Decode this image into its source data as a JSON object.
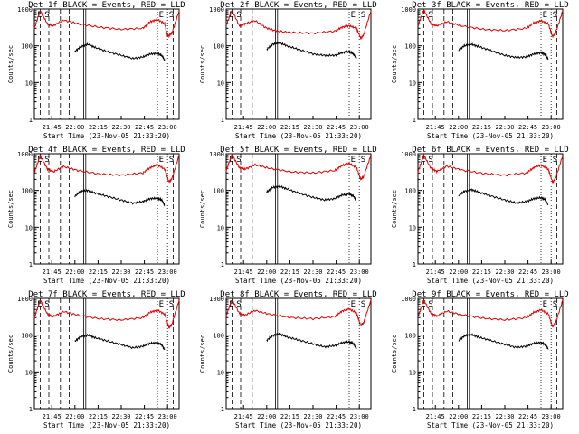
{
  "chart_data": [
    {
      "type": "line",
      "title": "Det 1f BLACK = Events, RED = LLD",
      "xlabel": "Start Time (23-Nov-05 21:33:20)",
      "ylabel": "Counts/sec",
      "yscale": "log",
      "ylim": [
        1,
        1000
      ],
      "y_ticks": [
        "1",
        "10",
        "100",
        "1000"
      ],
      "x_ticks": [
        "21:45",
        "22:00",
        "22:15",
        "22:30",
        "22:45",
        "23:00"
      ],
      "markers": [
        "E",
        "S",
        "E",
        "S"
      ],
      "series": [
        {
          "name": "RED",
          "color": "#e00000",
          "x": [
            0,
            4,
            9,
            13,
            20,
            30,
            45,
            60,
            75,
            80,
            85,
            90,
            92,
            95,
            100
          ],
          "y": [
            300,
            900,
            400,
            350,
            500,
            400,
            320,
            280,
            300,
            450,
            520,
            400,
            180,
            220,
            900
          ]
        },
        {
          "name": "BLACK",
          "color": "#000000",
          "x": [
            28,
            32,
            37,
            42,
            50,
            60,
            68,
            75,
            80,
            85,
            88,
            90
          ],
          "y": [
            70,
            95,
            110,
            90,
            70,
            55,
            45,
            50,
            60,
            62,
            55,
            40
          ]
        }
      ]
    },
    {
      "type": "line",
      "title": "Det 2f BLACK = Events, RED = LLD",
      "xlabel": "Start Time (23-Nov-05 21:33:20)",
      "ylabel": "Counts/sec",
      "yscale": "log",
      "ylim": [
        1,
        1000
      ],
      "y_ticks": [
        "1",
        "10",
        "100",
        "1000"
      ],
      "x_ticks": [
        "21:45",
        "22:00",
        "22:15",
        "22:30",
        "22:45",
        "23:00"
      ],
      "markers": [
        "E",
        "S",
        "E",
        "S"
      ],
      "series": [
        {
          "name": "RED",
          "color": "#e00000",
          "x": [
            0,
            4,
            9,
            13,
            20,
            28,
            35,
            45,
            60,
            75,
            80,
            85,
            90,
            93,
            95,
            100
          ],
          "y": [
            350,
            950,
            350,
            400,
            480,
            300,
            250,
            230,
            220,
            250,
            320,
            350,
            300,
            160,
            200,
            900
          ]
        },
        {
          "name": "BLACK",
          "color": "#000000",
          "x": [
            28,
            32,
            37,
            42,
            50,
            60,
            68,
            75,
            80,
            85,
            88,
            90
          ],
          "y": [
            80,
            110,
            120,
            100,
            80,
            60,
            55,
            55,
            65,
            70,
            60,
            45
          ]
        }
      ]
    },
    {
      "type": "line",
      "title": "Det 3f BLACK = Events, RED = LLD",
      "xlabel": "Start Time (23-Nov-05 21:33:20)",
      "ylabel": "Counts/sec",
      "yscale": "log",
      "ylim": [
        1,
        1000
      ],
      "y_ticks": [
        "1",
        "10",
        "100",
        "1000"
      ],
      "x_ticks": [
        "21:45",
        "22:00",
        "22:15",
        "22:30",
        "22:45",
        "23:00"
      ],
      "markers": [
        "E",
        "S",
        "E",
        "S"
      ],
      "series": [
        {
          "name": "RED",
          "color": "#e00000",
          "x": [
            0,
            4,
            9,
            13,
            20,
            30,
            45,
            60,
            75,
            80,
            85,
            90,
            93,
            95,
            100
          ],
          "y": [
            350,
            950,
            400,
            350,
            450,
            350,
            280,
            260,
            300,
            420,
            480,
            400,
            180,
            220,
            900
          ]
        },
        {
          "name": "BLACK",
          "color": "#000000",
          "x": [
            28,
            32,
            37,
            42,
            50,
            60,
            68,
            75,
            80,
            85,
            88,
            90
          ],
          "y": [
            75,
            100,
            110,
            95,
            75,
            55,
            48,
            50,
            60,
            65,
            58,
            42
          ]
        }
      ]
    },
    {
      "type": "line",
      "title": "Det 4f BLACK = Events, RED = LLD",
      "xlabel": "Start Time (23-Nov-05 21:33:20)",
      "ylabel": "Counts/sec",
      "yscale": "log",
      "ylim": [
        1,
        1000
      ],
      "y_ticks": [
        "1",
        "10",
        "100",
        "1000"
      ],
      "x_ticks": [
        "21:45",
        "22:00",
        "22:15",
        "22:30",
        "22:45",
        "23:00"
      ],
      "markers": [
        "E",
        "S",
        "E",
        "S"
      ],
      "series": [
        {
          "name": "RED",
          "color": "#e00000",
          "x": [
            0,
            4,
            9,
            13,
            20,
            30,
            45,
            60,
            75,
            80,
            85,
            90,
            93,
            95,
            100
          ],
          "y": [
            300,
            900,
            380,
            320,
            450,
            350,
            280,
            260,
            300,
            420,
            500,
            380,
            170,
            210,
            900
          ]
        },
        {
          "name": "BLACK",
          "color": "#000000",
          "x": [
            28,
            32,
            37,
            42,
            50,
            60,
            68,
            75,
            80,
            85,
            88,
            90
          ],
          "y": [
            70,
            95,
            100,
            85,
            70,
            55,
            45,
            50,
            60,
            62,
            55,
            40
          ]
        }
      ]
    },
    {
      "type": "line",
      "title": "Det 5f BLACK = Events, RED = LLD",
      "xlabel": "Start Time (23-Nov-05 21:33:20)",
      "ylabel": "Counts/sec",
      "yscale": "log",
      "ylim": [
        1,
        1000
      ],
      "y_ticks": [
        "1",
        "10",
        "100",
        "1000"
      ],
      "x_ticks": [
        "21:45",
        "22:00",
        "22:15",
        "22:30",
        "22:45",
        "23:00"
      ],
      "markers": [
        "E",
        "S",
        "E",
        "S"
      ],
      "series": [
        {
          "name": "RED",
          "color": "#e00000",
          "x": [
            0,
            4,
            9,
            13,
            20,
            30,
            45,
            60,
            75,
            80,
            85,
            90,
            93,
            95,
            100
          ],
          "y": [
            350,
            950,
            420,
            380,
            500,
            400,
            320,
            300,
            350,
            480,
            550,
            420,
            200,
            240,
            900
          ]
        },
        {
          "name": "BLACK",
          "color": "#000000",
          "x": [
            28,
            32,
            37,
            42,
            50,
            60,
            68,
            75,
            80,
            85,
            88,
            90
          ],
          "y": [
            90,
            120,
            130,
            110,
            85,
            65,
            55,
            60,
            75,
            80,
            70,
            50
          ]
        }
      ]
    },
    {
      "type": "line",
      "title": "Det 6f BLACK = Events, RED = LLD",
      "xlabel": "Start Time (23-Nov-05 21:33:20)",
      "ylabel": "Counts/sec",
      "yscale": "log",
      "ylim": [
        1,
        1000
      ],
      "y_ticks": [
        "1",
        "10",
        "100",
        "1000"
      ],
      "x_ticks": [
        "21:45",
        "22:00",
        "22:15",
        "22:30",
        "22:45",
        "23:00"
      ],
      "markers": [
        "E",
        "S",
        "E",
        "S"
      ],
      "series": [
        {
          "name": "RED",
          "color": "#e00000",
          "x": [
            0,
            4,
            9,
            13,
            20,
            30,
            45,
            60,
            75,
            80,
            85,
            90,
            93,
            95,
            100
          ],
          "y": [
            320,
            920,
            400,
            330,
            460,
            360,
            290,
            260,
            300,
            420,
            490,
            380,
            170,
            210,
            900
          ]
        },
        {
          "name": "BLACK",
          "color": "#000000",
          "x": [
            28,
            32,
            37,
            42,
            50,
            60,
            68,
            75,
            80,
            85,
            88,
            90
          ],
          "y": [
            70,
            95,
            105,
            90,
            72,
            55,
            46,
            50,
            60,
            64,
            56,
            40
          ]
        }
      ]
    },
    {
      "type": "line",
      "title": "Det 7f BLACK = Events, RED = LLD",
      "xlabel": "Start Time (23-Nov-05 21:33:20)",
      "ylabel": "Counts/sec",
      "yscale": "log",
      "ylim": [
        1,
        1000
      ],
      "y_ticks": [
        "1",
        "10",
        "100",
        "1000"
      ],
      "x_ticks": [
        "21:45",
        "22:00",
        "22:15",
        "22:30",
        "22:45",
        "23:00"
      ],
      "markers": [
        "E",
        "S",
        "E",
        "S"
      ],
      "series": [
        {
          "name": "RED",
          "color": "#e00000",
          "x": [
            0,
            4,
            9,
            13,
            20,
            30,
            45,
            60,
            75,
            80,
            85,
            90,
            93,
            95,
            100
          ],
          "y": [
            300,
            900,
            380,
            320,
            440,
            350,
            280,
            260,
            300,
            420,
            480,
            370,
            160,
            200,
            900
          ]
        },
        {
          "name": "BLACK",
          "color": "#000000",
          "x": [
            28,
            32,
            37,
            42,
            50,
            60,
            68,
            75,
            80,
            85,
            88,
            90
          ],
          "y": [
            68,
            92,
            100,
            85,
            70,
            55,
            45,
            50,
            60,
            62,
            55,
            40
          ]
        }
      ]
    },
    {
      "type": "line",
      "title": "Det 8f BLACK = Events, RED = LLD",
      "xlabel": "Start Time (23-Nov-05 21:33:20)",
      "ylabel": "Counts/sec",
      "yscale": "log",
      "ylim": [
        1,
        1000
      ],
      "y_ticks": [
        "1",
        "10",
        "100",
        "1000"
      ],
      "x_ticks": [
        "21:45",
        "22:00",
        "22:15",
        "22:30",
        "22:45",
        "23:00"
      ],
      "markers": [
        "E",
        "S",
        "E",
        "S"
      ],
      "series": [
        {
          "name": "RED",
          "color": "#e00000",
          "x": [
            0,
            4,
            9,
            13,
            20,
            30,
            45,
            60,
            75,
            80,
            85,
            90,
            93,
            95,
            100
          ],
          "y": [
            330,
            930,
            400,
            350,
            470,
            370,
            300,
            280,
            320,
            450,
            520,
            400,
            180,
            220,
            900
          ]
        },
        {
          "name": "BLACK",
          "color": "#000000",
          "x": [
            28,
            32,
            37,
            42,
            50,
            60,
            68,
            75,
            80,
            85,
            88,
            90
          ],
          "y": [
            72,
            98,
            108,
            90,
            74,
            58,
            48,
            52,
            62,
            66,
            58,
            42
          ]
        }
      ]
    },
    {
      "type": "line",
      "title": "Det 9f BLACK = Events, RED = LLD",
      "xlabel": "Start Time (23-Nov-05 21:33:20)",
      "ylabel": "Counts/sec",
      "yscale": "log",
      "ylim": [
        1,
        1000
      ],
      "y_ticks": [
        "1",
        "10",
        "100",
        "1000"
      ],
      "x_ticks": [
        "21:45",
        "22:00",
        "22:15",
        "22:30",
        "22:45",
        "23:00"
      ],
      "markers": [
        "E",
        "S",
        "E",
        "S"
      ],
      "series": [
        {
          "name": "RED",
          "color": "#e00000",
          "x": [
            0,
            4,
            9,
            13,
            20,
            30,
            45,
            60,
            75,
            80,
            85,
            90,
            93,
            95,
            100
          ],
          "y": [
            310,
            910,
            390,
            330,
            450,
            360,
            290,
            260,
            300,
            420,
            490,
            380,
            170,
            210,
            900
          ]
        },
        {
          "name": "BLACK",
          "color": "#000000",
          "x": [
            28,
            32,
            37,
            42,
            50,
            60,
            68,
            75,
            80,
            85,
            88,
            90
          ],
          "y": [
            70,
            95,
            104,
            88,
            72,
            56,
            46,
            50,
            60,
            63,
            56,
            41
          ]
        }
      ]
    }
  ]
}
